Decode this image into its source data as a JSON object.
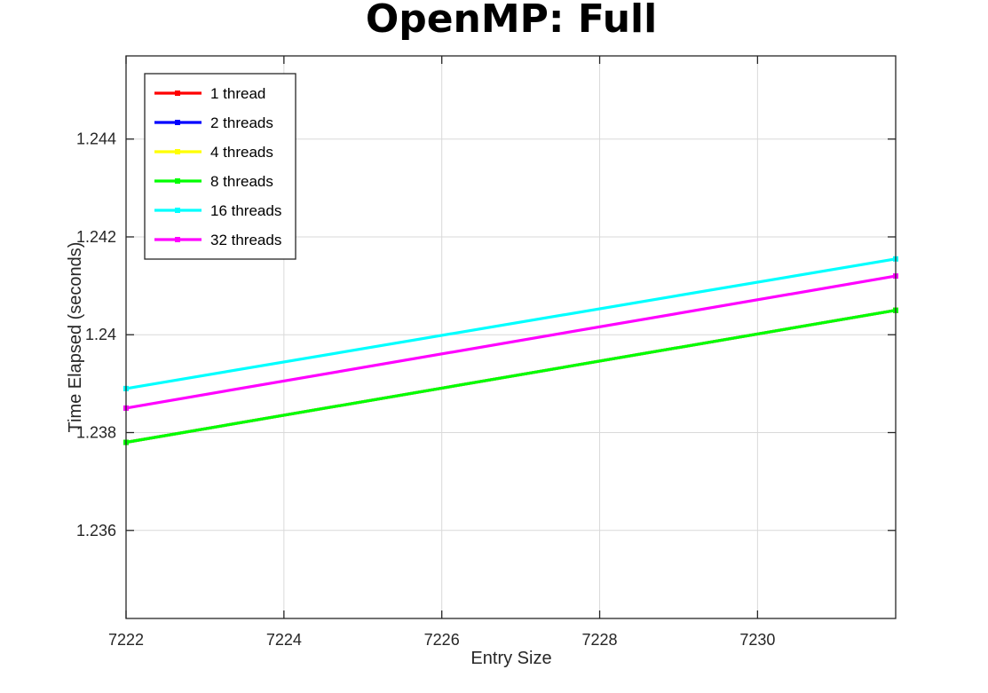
{
  "chart_data": {
    "type": "line",
    "title": "OpenMP: Full",
    "xlabel": "Entry Size",
    "ylabel": "Time Elapsed (seconds)",
    "xlim": [
      7222,
      7231.75
    ],
    "ylim": [
      1.2342,
      1.2457
    ],
    "xticks": [
      7222,
      7224,
      7226,
      7228,
      7230
    ],
    "yticks": [
      1.236,
      1.238,
      1.24,
      1.242,
      1.244
    ],
    "ytick_labels": [
      "1.236",
      "1.238",
      "1.24",
      "1.242",
      "1.244"
    ],
    "grid": true,
    "legend_position": "top-left",
    "x": [
      7222,
      7231.75
    ],
    "series": [
      {
        "name": "1 thread",
        "color": "#ff0000",
        "values": [
          1.2378,
          1.2405
        ]
      },
      {
        "name": "2 threads",
        "color": "#0000ff",
        "values": [
          1.2378,
          1.2405
        ]
      },
      {
        "name": "4 threads",
        "color": "#ffff00",
        "values": [
          1.2378,
          1.2405
        ]
      },
      {
        "name": "8 threads",
        "color": "#00ff00",
        "values": [
          1.2378,
          1.2405
        ]
      },
      {
        "name": "16 threads",
        "color": "#00ffff",
        "values": [
          1.2389,
          1.24155
        ]
      },
      {
        "name": "32 threads",
        "color": "#ff00ff",
        "values": [
          1.2385,
          1.2412
        ]
      }
    ]
  }
}
